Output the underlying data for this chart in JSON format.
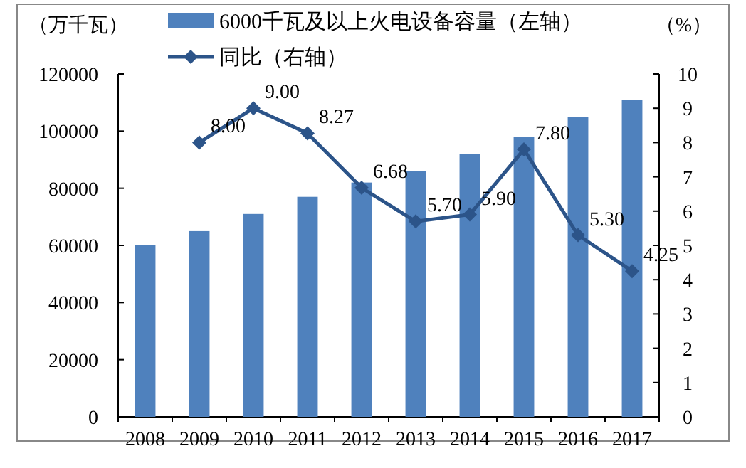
{
  "chart_data": {
    "type": "bar",
    "ylabel": "（万千瓦）",
    "y2label": "（%）",
    "categories": [
      "2008",
      "2009",
      "2010",
      "2011",
      "2012",
      "2013",
      "2014",
      "2015",
      "2016",
      "2017"
    ],
    "series": [
      {
        "name": "6000千瓦及以上火电设备容量（左轴）",
        "color": "#4f81bd",
        "values": [
          60000,
          65000,
          71000,
          77000,
          82000,
          86000,
          92000,
          98000,
          105000,
          111000
        ]
      },
      {
        "name": "同比（右轴）",
        "type": "line",
        "axis": "y2",
        "color": "#2c5489",
        "values": [
          null,
          8.0,
          9.0,
          8.27,
          6.68,
          5.7,
          5.9,
          7.8,
          5.3,
          4.25
        ],
        "value_labels": [
          null,
          "8.00",
          "9.00",
          "8.27",
          "6.68",
          "5.70",
          "5.90",
          "7.80",
          "5.30",
          "4.25"
        ]
      }
    ],
    "ylim": [
      0,
      120000
    ],
    "yticks": [
      0,
      20000,
      40000,
      60000,
      80000,
      100000,
      120000
    ],
    "y2lim": [
      0,
      10
    ],
    "y2ticks": [
      0,
      1,
      2,
      3,
      4,
      5,
      6,
      7,
      8,
      9,
      10
    ],
    "marker": "diamond",
    "legend": "top"
  }
}
